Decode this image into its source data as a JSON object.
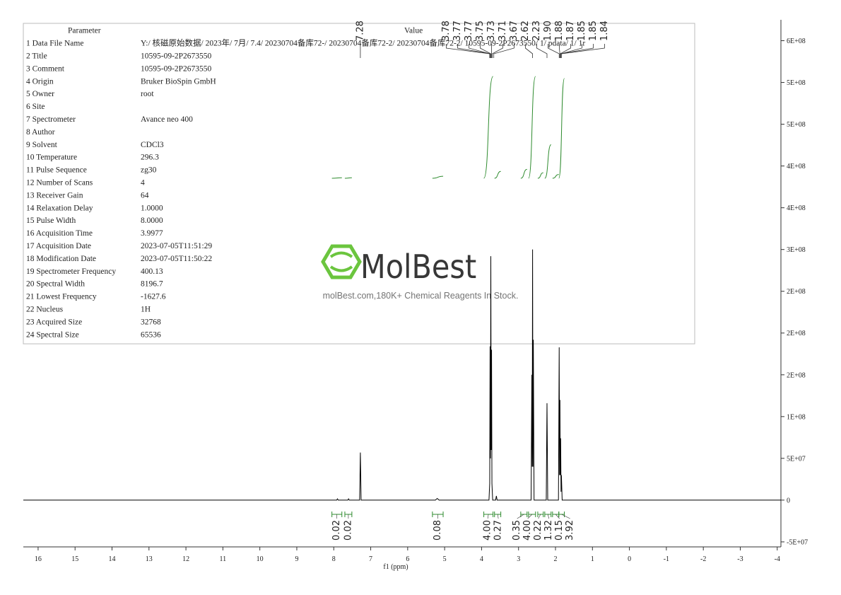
{
  "chart_data": {
    "type": "line",
    "xlabel": "f1 (ppm)",
    "xlim": [
      16.4,
      -4.1
    ],
    "xticks": [
      16,
      15,
      14,
      13,
      12,
      11,
      10,
      9,
      8,
      7,
      6,
      5,
      4,
      3,
      2,
      1,
      0,
      -1,
      -2,
      -3,
      -4
    ],
    "ylim": [
      -56000000,
      575000000
    ],
    "yticks": [
      {
        "value": -50000000,
        "label": "-5E+07"
      },
      0,
      {
        "value": 50000000,
        "label": "5E+07"
      },
      {
        "value": 100000000,
        "label": "1E+08"
      },
      {
        "value": 150000000,
        "label": "2E+08"
      },
      {
        "value": 200000000,
        "label": "2E+08"
      },
      {
        "value": 250000000,
        "label": "2E+08"
      },
      {
        "value": 300000000,
        "label": "3E+08"
      },
      {
        "value": 350000000,
        "label": "4E+08"
      },
      {
        "value": 400000000,
        "label": "4E+08"
      },
      {
        "value": 450000000,
        "label": "5E+08"
      },
      {
        "value": 500000000,
        "label": "5E+08"
      },
      {
        "value": 550000000,
        "label": "6E+08"
      }
    ],
    "x": [
      16.4,
      7.92,
      7.9,
      7.88,
      7.62,
      7.6,
      7.58,
      7.3,
      7.28,
      7.26,
      5.25,
      5.2,
      5.15,
      3.8,
      3.78,
      3.77,
      3.76,
      3.75,
      3.74,
      3.73,
      3.72,
      3.7,
      3.62,
      3.6,
      3.58,
      2.66,
      2.64,
      2.63,
      2.62,
      2.61,
      2.6,
      2.58,
      2.25,
      2.23,
      2.21,
      1.92,
      1.9,
      1.89,
      1.88,
      1.87,
      1.86,
      1.85,
      1.84,
      1.82,
      -4.1
    ],
    "series": [
      {
        "color": "#000000",
        "values": [
          0,
          0,
          1500000,
          0,
          0,
          1500000,
          0,
          0,
          57000000,
          0,
          0,
          2000000,
          0,
          0,
          20000000,
          184000000,
          50000000,
          292000000,
          60000000,
          180000000,
          20000000,
          0,
          0,
          5000000,
          0,
          0,
          150000000,
          40000000,
          300000000,
          40000000,
          192000000,
          0,
          0,
          116000000,
          0,
          0,
          183000000,
          30000000,
          120000000,
          30000000,
          74000000,
          10000000,
          30000000,
          0,
          0
        ]
      }
    ],
    "peaks": {
      "values": [
        7.28,
        3.78,
        3.77,
        3.77,
        3.75,
        3.73,
        3.71,
        3.67,
        2.62,
        2.23,
        1.9,
        1.88,
        1.87,
        1.85,
        1.85,
        1.84
      ],
      "value_labels": [
        "7.28",
        "3.78",
        "3.77",
        "3.77",
        "3.75",
        "3.73",
        "3.71",
        "3.67",
        "2.62",
        "2.23",
        "1.90",
        "1.88",
        "1.87",
        "1.85",
        "1.85",
        "1.84"
      ],
      "color": "#2e8b2e"
    },
    "integrals": {
      "values": [
        0.02,
        0.02,
        0.08,
        4,
        0.27,
        0.35,
        4,
        0.22,
        1.32,
        0.15,
        3.92
      ],
      "value_labels": [
        "0.02",
        "0.02",
        "0.08",
        "4.00",
        "0.27",
        "0.35",
        "4.00",
        "0.22",
        "1.32",
        "0.15",
        "3.92"
      ],
      "x_from": [
        8.05,
        7.7,
        5.33,
        3.94,
        3.65,
        2.94,
        2.73,
        2.48,
        2.29,
        2.08,
        1.91
      ],
      "x_to": [
        7.78,
        7.51,
        5.04,
        3.69,
        3.48,
        2.77,
        2.54,
        2.33,
        2.12,
        1.91,
        1.76
      ],
      "color": "#2e8b2e"
    }
  },
  "parameters": {
    "header": [
      "Parameter",
      "Value"
    ],
    "rows": [
      [
        "1 Data File Name",
        "Y:/ 核磁原始数据/ 2023年/ 7月/ 7.4/ 20230704备库72-/ 20230704备库72-2/ 20230704备库72-2/ 10595-09-2P2673550/ 1/ pdata/ 1/ 1r"
      ],
      [
        "2 Title",
        "10595-09-2P2673550"
      ],
      [
        "3 Comment",
        "10595-09-2P2673550"
      ],
      [
        "4 Origin",
        "Bruker BioSpin GmbH"
      ],
      [
        "5 Owner",
        "root"
      ],
      [
        "6 Site",
        ""
      ],
      [
        "7 Spectrometer",
        "Avance neo 400"
      ],
      [
        "8 Author",
        ""
      ],
      [
        "9 Solvent",
        "CDCl3"
      ],
      [
        "10 Temperature",
        "296.3"
      ],
      [
        "11 Pulse Sequence",
        "zg30"
      ],
      [
        "12 Number of Scans",
        "4"
      ],
      [
        "13 Receiver Gain",
        "64"
      ],
      [
        "14 Relaxation Delay",
        "1.0000"
      ],
      [
        "15 Pulse Width",
        "8.0000"
      ],
      [
        "16 Acquisition Time",
        "3.9977"
      ],
      [
        "17 Acquisition Date",
        "2023-07-05T11:51:29"
      ],
      [
        "18 Modification Date",
        "2023-07-05T11:50:22"
      ],
      [
        "19 Spectrometer Frequency",
        "400.13"
      ],
      [
        "20 Spectral Width",
        "8196.7"
      ],
      [
        "21 Lowest Frequency",
        "-1627.6"
      ],
      [
        "22 Nucleus",
        "1H"
      ],
      [
        "23 Acquired Size",
        "32768"
      ],
      [
        "24 Spectral Size",
        "65536"
      ]
    ]
  },
  "watermark": {
    "brand": "MolBest",
    "tagline": "molBest.com,180K+ Chemical Reagents In Stock."
  }
}
